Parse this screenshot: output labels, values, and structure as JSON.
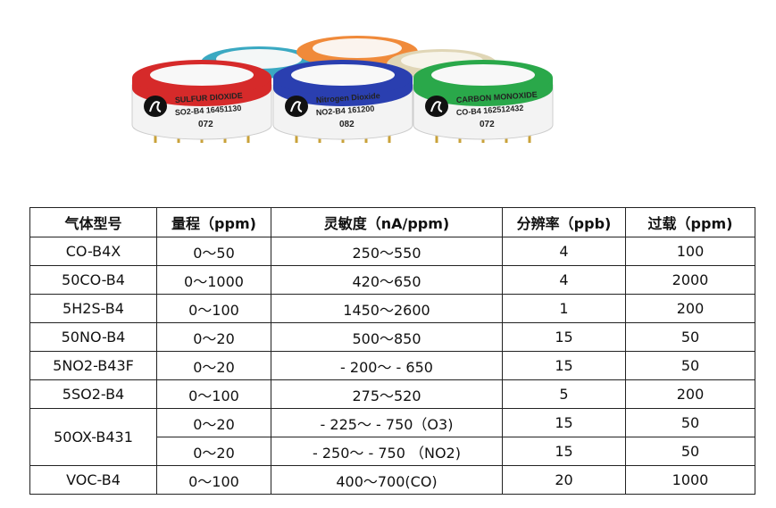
{
  "sensors": [
    {
      "name": "SULFUR DIOXIDE",
      "code": "SO2-B4 16451130",
      "number": "072"
    },
    {
      "name": "Nitrogen Dioxide",
      "code": "NO2-B4 161200",
      "number": "082"
    },
    {
      "name": "CARBON MONOXIDE",
      "code": "CO-B4 162512432",
      "number": "072"
    }
  ],
  "table": {
    "header": [
      "气体型号",
      "量程（ppm)",
      "灵敏度（nA/ppm)",
      "分辨率（ppb)",
      "过载（ppm)"
    ],
    "rows": [
      [
        "CO-B4X",
        "0～50",
        "250～550",
        "4",
        "100"
      ],
      [
        "50CO-B4",
        "0～1000",
        "420～650",
        "4",
        "2000"
      ],
      [
        "5H2S-B4",
        "0～100",
        "1450～2600",
        "1",
        "200"
      ],
      [
        "50NO-B4",
        "0～20",
        "500～850",
        "15",
        "50"
      ],
      [
        "5NO2-B43F",
        "0～20",
        "- 200～ - 650",
        "15",
        "50"
      ],
      [
        "5SO2-B4",
        "0～100",
        "275～520",
        "5",
        "200"
      ],
      [
        "50OX-B431",
        "0～20",
        "- 225～ - 750（O3)",
        "15",
        "50"
      ],
      [
        "0～20",
        "- 250～ - 750 （NO2)",
        "15",
        "50"
      ],
      [
        "VOC-B4",
        "0～100",
        "400～700(CO)",
        "20",
        "1000"
      ]
    ]
  }
}
